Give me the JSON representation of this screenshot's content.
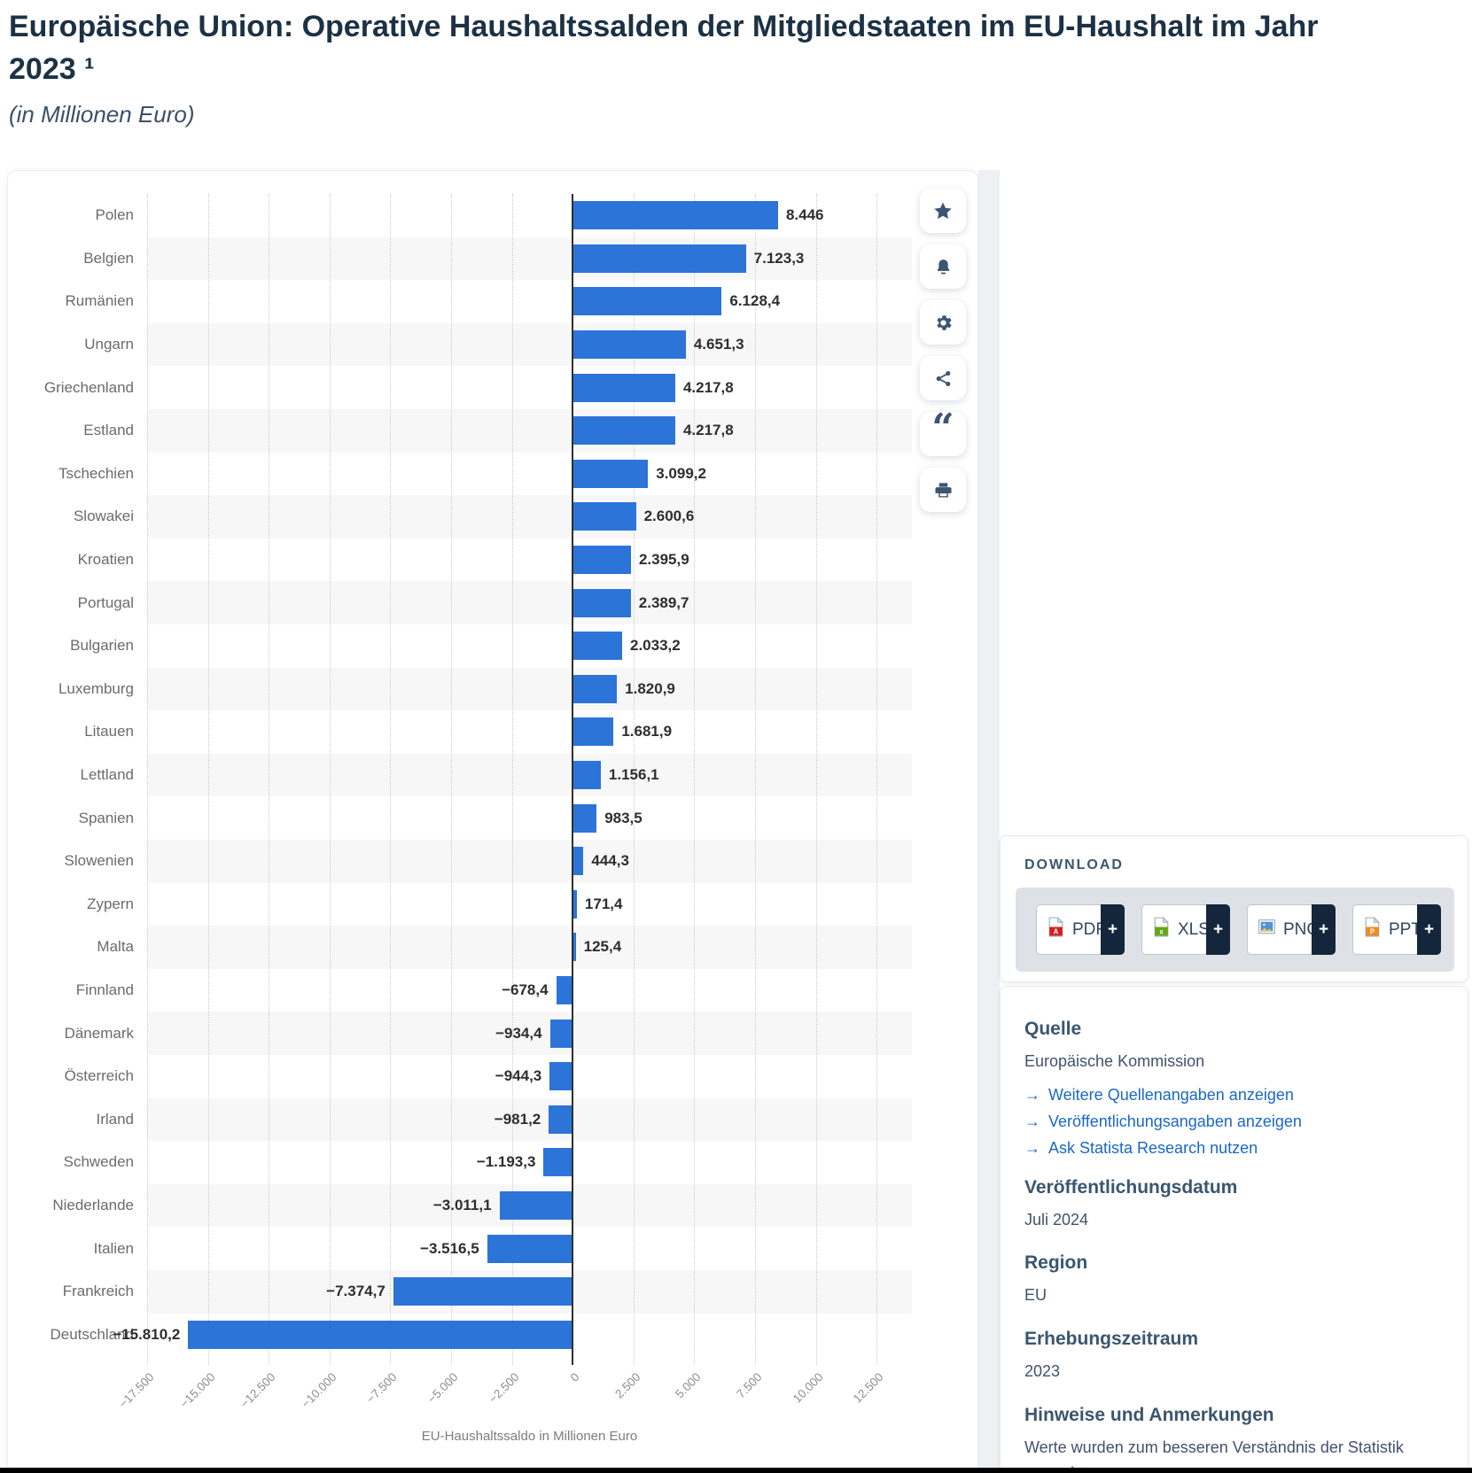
{
  "header": {
    "title": "Europäische Union: Operative Haushaltssalden der Mitgliedstaaten im EU-Haushalt im Jahr 2023 ¹",
    "subtitle": "(in Millionen Euro)"
  },
  "chart_data": {
    "type": "bar",
    "orientation": "horizontal",
    "categories": [
      "Polen",
      "Belgien",
      "Rumänien",
      "Ungarn",
      "Griechenland",
      "Estland",
      "Tschechien",
      "Slowakei",
      "Kroatien",
      "Portugal",
      "Bulgarien",
      "Luxemburg",
      "Litauen",
      "Lettland",
      "Spanien",
      "Slowenien",
      "Zypern",
      "Malta",
      "Finnland",
      "Dänemark",
      "Österreich",
      "Irland",
      "Schweden",
      "Niederlande",
      "Italien",
      "Frankreich",
      "Deutschland"
    ],
    "values": [
      8446,
      7123.3,
      6128.4,
      4651.3,
      4217.8,
      4217.8,
      3099.2,
      2600.6,
      2395.9,
      2389.7,
      2033.2,
      1820.9,
      1681.9,
      1156.1,
      983.5,
      444.3,
      171.4,
      125.4,
      -678.4,
      -934.4,
      -944.3,
      -981.2,
      -1193.3,
      -3011.1,
      -3516.5,
      -7374.7,
      -15810.2
    ],
    "value_labels": [
      "8.446",
      "7.123,3",
      "6.128,4",
      "4.651,3",
      "4.217,8",
      "4.217,8",
      "3.099,2",
      "2.600,6",
      "2.395,9",
      "2.389,7",
      "2.033,2",
      "1.820,9",
      "1.681,9",
      "1.156,1",
      "983,5",
      "444,3",
      "171,4",
      "125,4",
      "−678,4",
      "−934,4",
      "−944,3",
      "−981,2",
      "−1.193,3",
      "−3.011,1",
      "−3.516,5",
      "−7.374,7",
      "−15.810,2"
    ],
    "xlabel": "EU-Haushaltssaldo in Millionen Euro",
    "xlim": [
      -17500,
      13950
    ],
    "ticks": [
      {
        "value": -17500,
        "label": "−17.500"
      },
      {
        "value": -15000,
        "label": "−15.000"
      },
      {
        "value": -12500,
        "label": "−12.500"
      },
      {
        "value": -10000,
        "label": "−10.000"
      },
      {
        "value": -7500,
        "label": "−7.500"
      },
      {
        "value": -5000,
        "label": "−5.000"
      },
      {
        "value": -2500,
        "label": "−2.500"
      },
      {
        "value": 0,
        "label": "0"
      },
      {
        "value": 2500,
        "label": "2.500"
      },
      {
        "value": 5000,
        "label": "5.000"
      },
      {
        "value": 7500,
        "label": "7.500"
      },
      {
        "value": 10000,
        "label": "10.000"
      },
      {
        "value": 12500,
        "label": "12.500"
      }
    ],
    "bar_color": "#2d74d9",
    "stripe_color": "#f7f7f8",
    "grid": true
  },
  "toolbar": {
    "buttons": [
      {
        "name": "favorite",
        "icon": "star-icon"
      },
      {
        "name": "alerts",
        "icon": "bell-icon"
      },
      {
        "name": "settings",
        "icon": "gear-icon"
      },
      {
        "name": "share",
        "icon": "share-icon"
      },
      {
        "name": "cite",
        "icon": "quote-icon"
      },
      {
        "name": "print",
        "icon": "printer-icon"
      }
    ]
  },
  "download": {
    "heading": "DOWNLOAD",
    "plus_label": "+",
    "buttons": [
      {
        "label": "PDF",
        "kind": "pdf"
      },
      {
        "label": "XLS",
        "kind": "xls"
      },
      {
        "label": "PNG",
        "kind": "png"
      },
      {
        "label": "PPT",
        "kind": "ppt"
      }
    ]
  },
  "sidebar": {
    "source_heading": "Quelle",
    "source_name": "Europäische Kommission",
    "link_arrow": "→",
    "links": [
      {
        "label": "Weitere Quellenangaben anzeigen"
      },
      {
        "label": "Veröffentlichungsangaben anzeigen"
      },
      {
        "label": "Ask Statista Research nutzen"
      }
    ],
    "pub_date_heading": "Veröffentlichungsdatum",
    "pub_date": "Juli 2024",
    "region_heading": "Region",
    "region": "EU",
    "period_heading": "Erhebungszeitraum",
    "period": "2023",
    "notes_heading": "Hinweise und Anmerkungen",
    "notes": "Werte wurden zum besseren Verständnis der Statistik gerundet."
  }
}
